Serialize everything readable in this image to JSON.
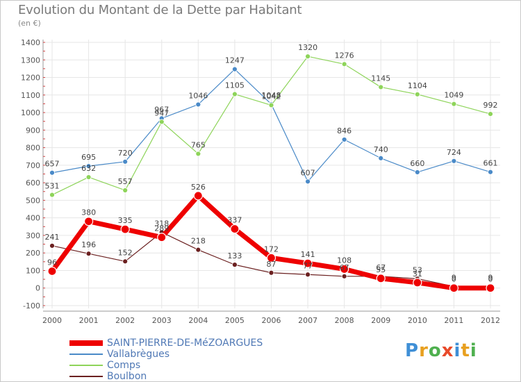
{
  "title": "Evolution du Montant de la Dette par Habitant",
  "subtitle": "(en €)",
  "logo_text": "Proxiti",
  "chart_data": {
    "type": "line",
    "x": [
      "2000",
      "2001",
      "2002",
      "2003",
      "2004",
      "2005",
      "2006",
      "2007",
      "2008",
      "2009",
      "2010",
      "2011",
      "2012"
    ],
    "ylim": [
      -100,
      1400
    ],
    "yticks": [
      -100,
      0,
      100,
      200,
      300,
      400,
      500,
      600,
      700,
      800,
      900,
      1000,
      1100,
      1200,
      1300,
      1400
    ],
    "grid": true,
    "legend_position": "bottom-left",
    "series": [
      {
        "name": "Vallabrègues",
        "color": "#4a8ac8",
        "values": [
          657,
          695,
          720,
          967,
          1046,
          1247,
          1048,
          607,
          846,
          740,
          660,
          724,
          661
        ]
      },
      {
        "name": "Comps",
        "color": "#8ed45a",
        "values": [
          531,
          632,
          557,
          947,
          765,
          1105,
          1042,
          1320,
          1276,
          1145,
          1104,
          1049,
          992
        ]
      },
      {
        "name": "Boulbon",
        "color": "#6b2020",
        "values": [
          241,
          196,
          152,
          318,
          218,
          133,
          87,
          77,
          67,
          67,
          53,
          9,
          9
        ]
      },
      {
        "name": "SAINT-PIERRE-DE-MéZOARGUES",
        "color": "#ee0000",
        "values": [
          96,
          380,
          335,
          289,
          526,
          337,
          172,
          141,
          108,
          55,
          31,
          0,
          0
        ]
      }
    ]
  }
}
